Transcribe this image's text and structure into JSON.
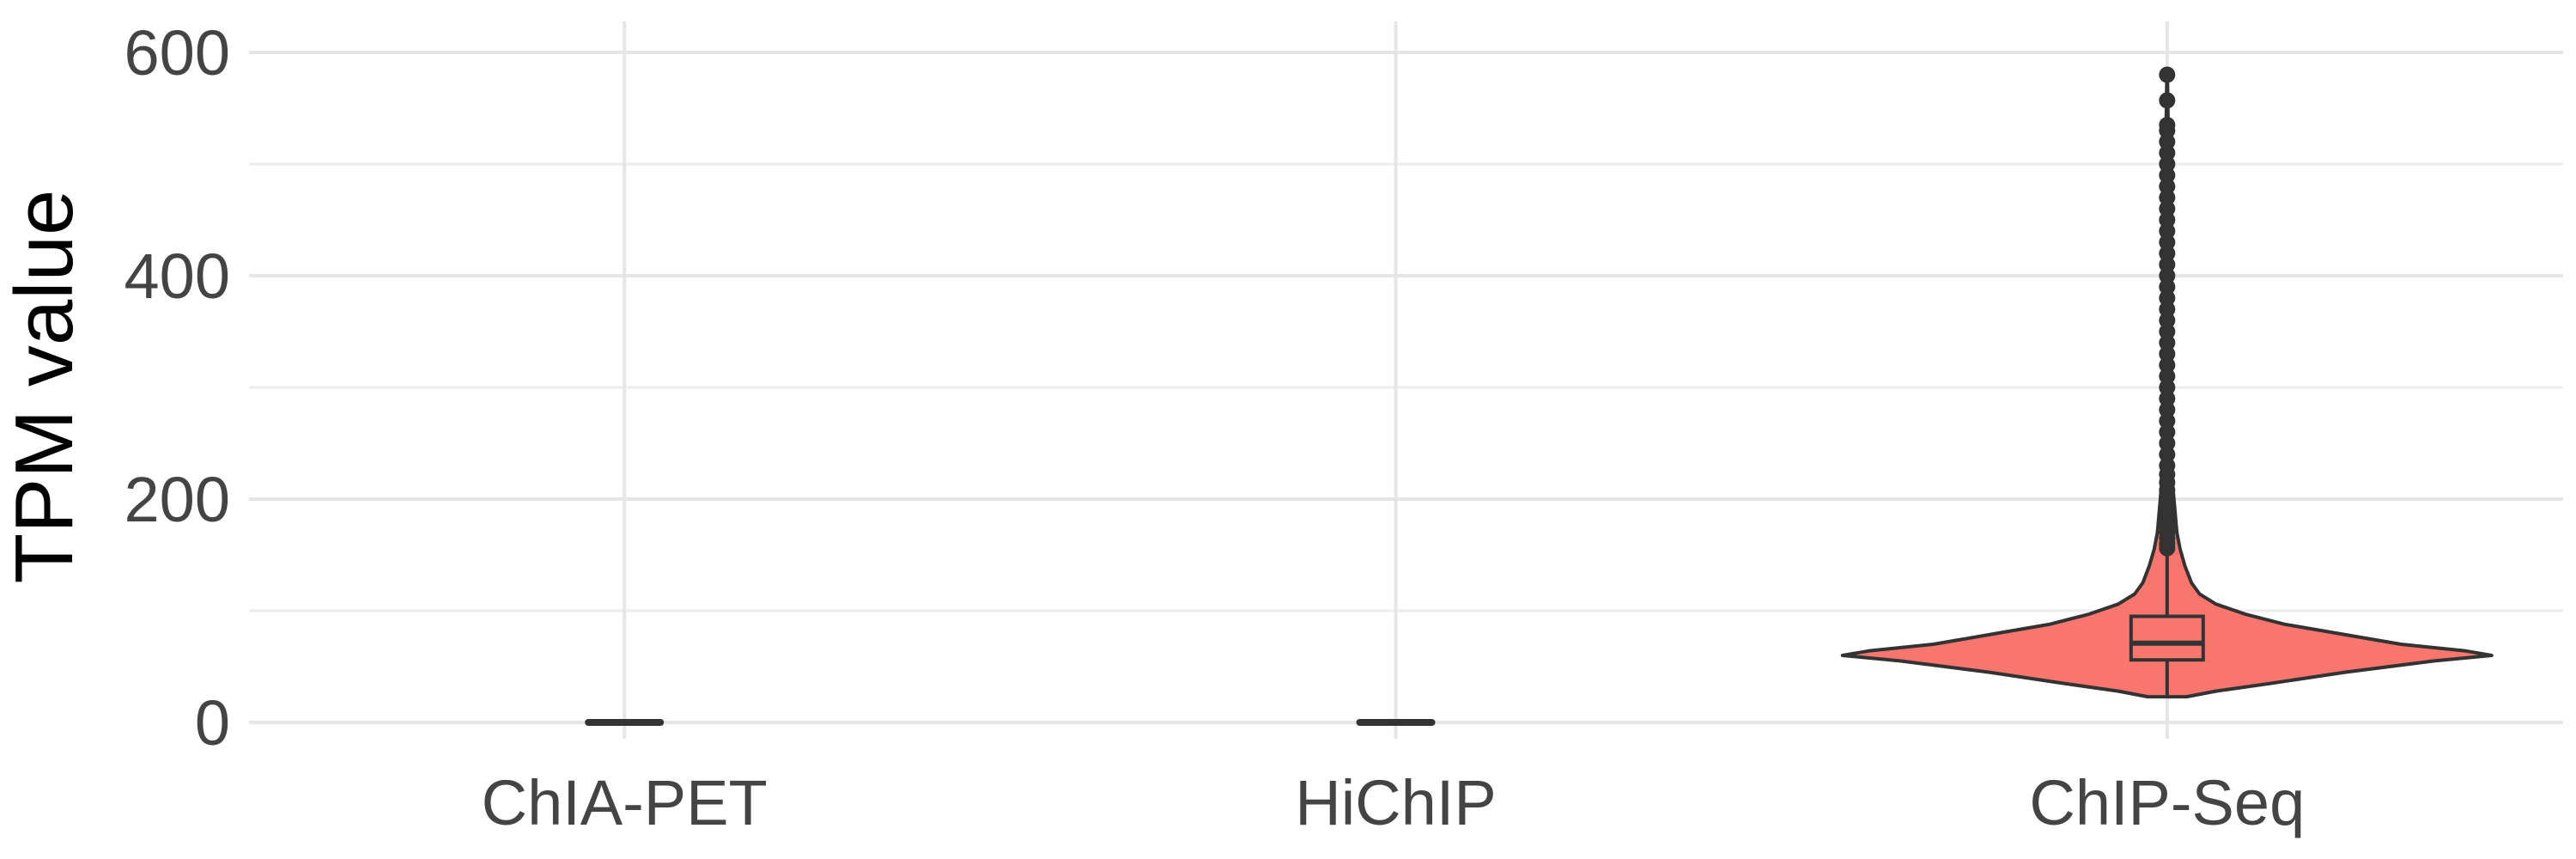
{
  "chart_data": {
    "type": "violin",
    "title": "",
    "xlabel": "",
    "ylabel": "TPM value",
    "ylim": [
      0,
      600
    ],
    "yticks": [
      0,
      200,
      400,
      600
    ],
    "grid": true,
    "categories": [
      "ChIA-PET",
      "HiChIP",
      "ChIP-Seq"
    ],
    "fill_color": "#f8766d",
    "outline_color": "#333333",
    "groups": [
      {
        "category": "ChIA-PET",
        "box": {
          "whisker_low": 0,
          "q1": 0,
          "median": 0,
          "q3": 0,
          "whisker_high": 0
        },
        "density_profile": [],
        "outliers": []
      },
      {
        "category": "HiChIP",
        "box": {
          "whisker_low": 0,
          "q1": 0,
          "median": 0,
          "q3": 0,
          "whisker_high": 0
        },
        "density_profile": [],
        "outliers": []
      },
      {
        "category": "ChIP-Seq",
        "box": {
          "whisker_low": 23,
          "q1": 56,
          "median": 71,
          "q3": 95,
          "whisker_high": 152
        },
        "density_profile": [
          {
            "y": 23,
            "w": 0.06
          },
          {
            "y": 28,
            "w": 0.15
          },
          {
            "y": 35,
            "w": 0.32
          },
          {
            "y": 45,
            "w": 0.55
          },
          {
            "y": 55,
            "w": 0.82
          },
          {
            "y": 60,
            "w": 1.0
          },
          {
            "y": 64,
            "w": 0.92
          },
          {
            "y": 70,
            "w": 0.72
          },
          {
            "y": 80,
            "w": 0.52
          },
          {
            "y": 88,
            "w": 0.36
          },
          {
            "y": 97,
            "w": 0.24
          },
          {
            "y": 106,
            "w": 0.15
          },
          {
            "y": 115,
            "w": 0.1
          },
          {
            "y": 125,
            "w": 0.075
          },
          {
            "y": 140,
            "w": 0.055
          },
          {
            "y": 155,
            "w": 0.04
          },
          {
            "y": 170,
            "w": 0.03
          },
          {
            "y": 190,
            "w": 0.024
          },
          {
            "y": 210,
            "w": 0.018
          },
          {
            "y": 230,
            "w": 0.013
          },
          {
            "y": 260,
            "w": 0.01
          },
          {
            "y": 300,
            "w": 0.008
          },
          {
            "y": 350,
            "w": 0.007
          },
          {
            "y": 400,
            "w": 0.006
          },
          {
            "y": 450,
            "w": 0.005
          },
          {
            "y": 500,
            "w": 0.004
          },
          {
            "y": 535,
            "w": 0.003
          },
          {
            "y": 580,
            "w": 0.001
          }
        ],
        "outliers": [
          580,
          557,
          535,
          530,
          520,
          510,
          500,
          490,
          480,
          470,
          460,
          450,
          440,
          430,
          420,
          410,
          400,
          390,
          380,
          370,
          360,
          350,
          340,
          330,
          320,
          310,
          300,
          290,
          280,
          270,
          260,
          250,
          240,
          230,
          222,
          215,
          208,
          200,
          194,
          188,
          182,
          176,
          170,
          165,
          160,
          156
        ]
      }
    ]
  }
}
